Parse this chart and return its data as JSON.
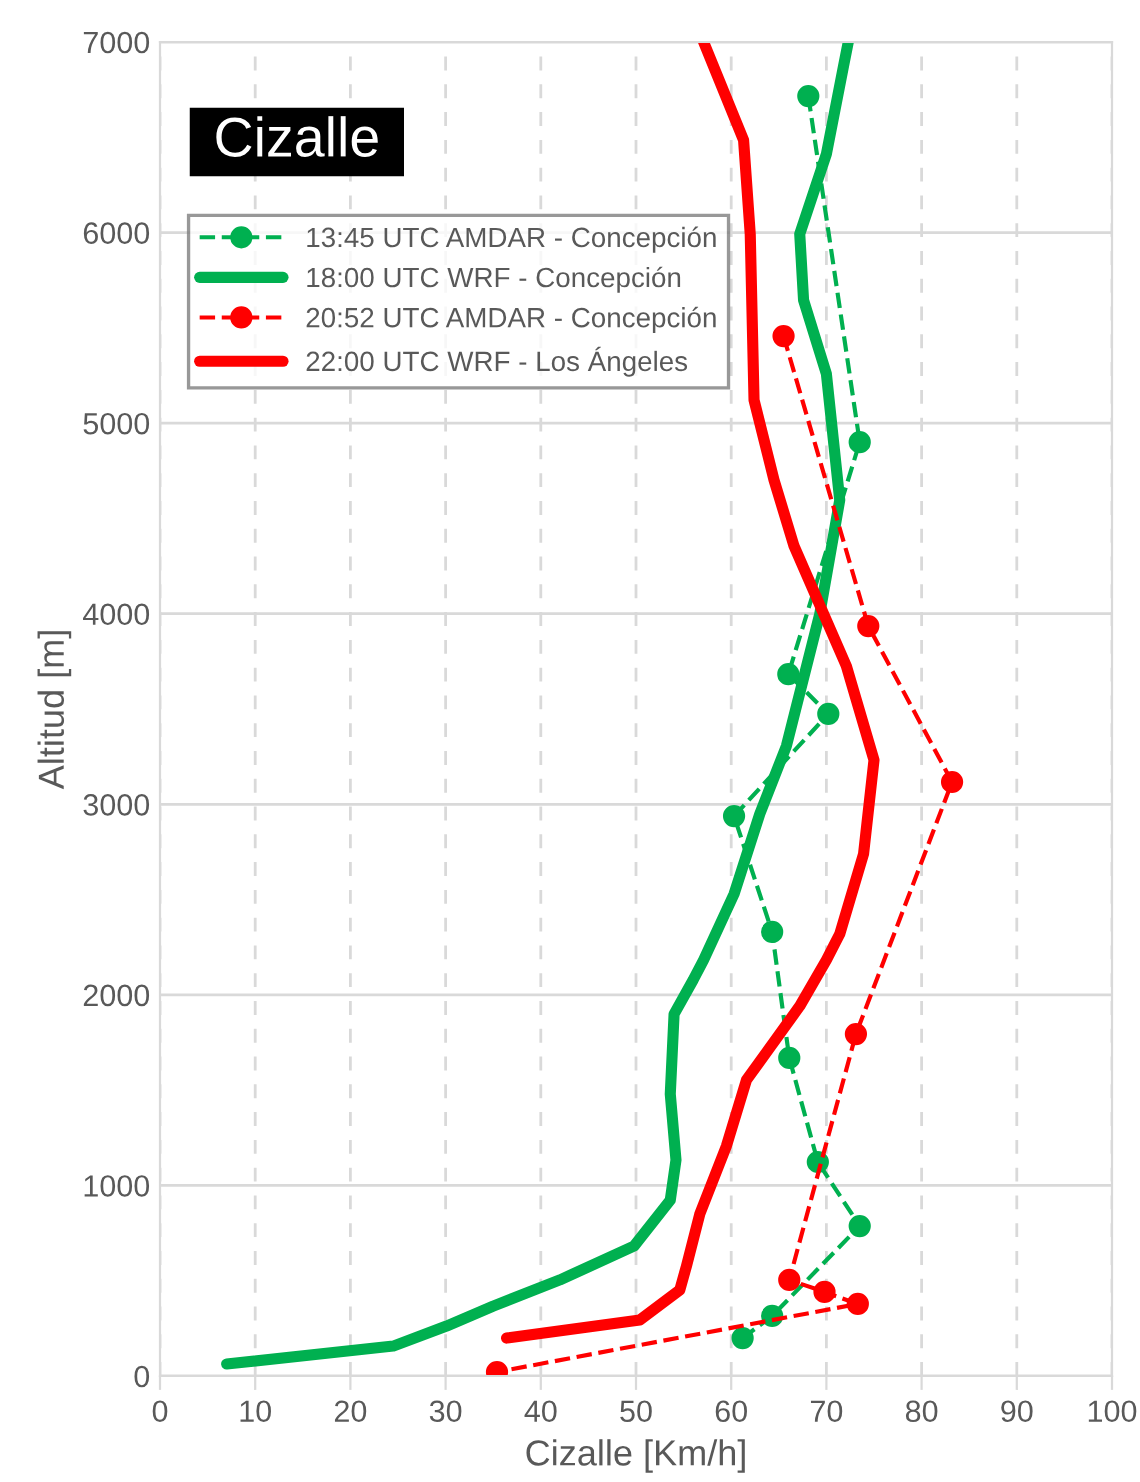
{
  "chart_data": {
    "type": "line",
    "title": "Cizalle",
    "xlabel": "Cizalle [Km/h]",
    "ylabel": "Altitud [m]",
    "xlim": [
      0,
      100
    ],
    "xticks": [
      0,
      10,
      20,
      30,
      40,
      50,
      60,
      70,
      80,
      90,
      100
    ],
    "ylim": [
      0,
      7000
    ],
    "yticks": [
      0,
      1000,
      2000,
      3000,
      4000,
      5000,
      6000,
      7000
    ],
    "grid": true,
    "legend": "top left",
    "series": [
      {
        "name": "13:45 UTC AMDAR - Concepción",
        "color": "#00b050",
        "line_style": "dashed",
        "marker": "circle",
        "x": [
          68.1,
          73.5,
          66.0,
          70.2,
          60.3,
          64.3,
          66.1,
          69.1,
          73.5,
          64.3,
          61.2
        ],
        "values": [
          6716,
          4900,
          3683,
          3474,
          2938,
          2330,
          1669,
          1123,
          787,
          315,
          199
        ]
      },
      {
        "name": "18:00 UTC WRF - Concepción",
        "color": "#00b050",
        "line_style": "solid",
        "marker": "none",
        "x": [
          72.3,
          71.8,
          70.0,
          67.2,
          67.6,
          70.0,
          71.4,
          69.3,
          65.8,
          63.0,
          60.3,
          57.1,
          56.0,
          54.0,
          53.6,
          54.2,
          53.6,
          49.8,
          42.0,
          35.0,
          30.1,
          24.5,
          7.0
        ],
        "values": [
          7000,
          6874,
          6412,
          5992,
          5646,
          5258,
          4596,
          3998,
          3306,
          2949,
          2529,
          2183,
          2078,
          1899,
          1480,
          1133,
          923,
          682,
          504,
          367,
          262,
          157,
          63
        ]
      },
      {
        "name": "20:52 UTC AMDAR - Concepción",
        "color": "#ff0000",
        "line_style": "dashed",
        "marker": "circle",
        "x": [
          65.5,
          74.4,
          83.2,
          73.1,
          66.1,
          69.8,
          73.3,
          35.4
        ],
        "values": [
          5457,
          3935,
          3117,
          1794,
          504,
          441,
          378,
          21
        ]
      },
      {
        "name": "22:00 UTC WRF - Los Ángeles",
        "color": "#ff0000",
        "line_style": "solid",
        "marker": "none",
        "x": [
          57.1,
          61.3,
          62.0,
          62.4,
          64.5,
          66.6,
          72.1,
          75.0,
          73.9,
          71.4,
          70.0,
          67.2,
          61.6,
          59.5,
          56.7,
          55.3,
          54.6,
          50.4,
          36.4
        ],
        "values": [
          7000,
          6485,
          5992,
          5121,
          4701,
          4355,
          3725,
          3232,
          2739,
          2319,
          2183,
          1941,
          1553,
          1207,
          850,
          577,
          451,
          294,
          199
        ]
      }
    ]
  }
}
